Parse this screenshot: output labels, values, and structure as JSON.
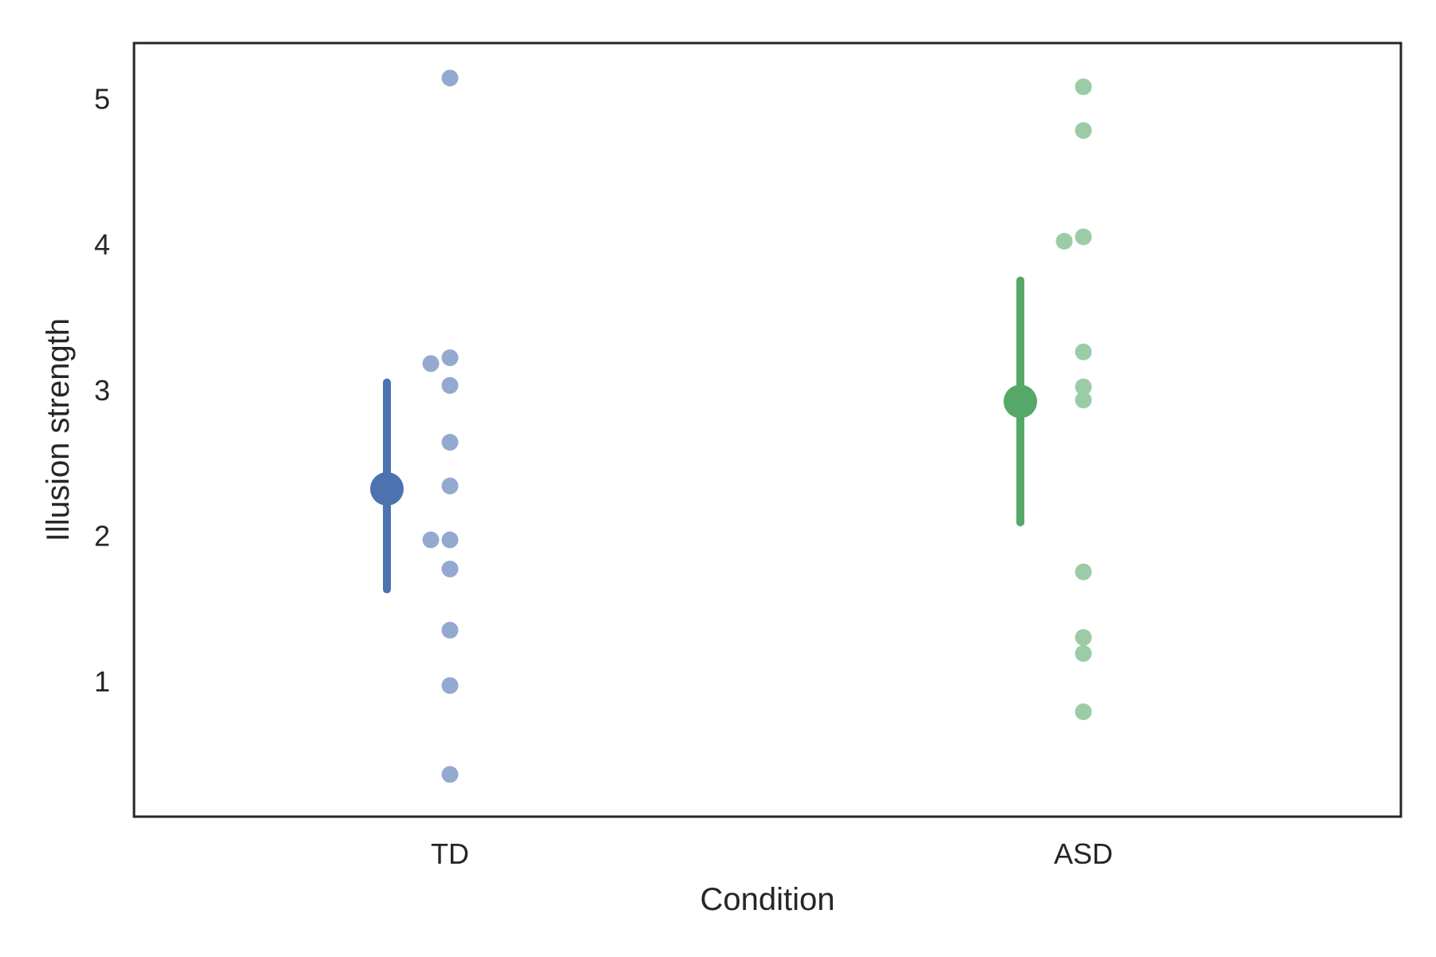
{
  "chart_data": {
    "type": "scatter",
    "xlabel": "Condition",
    "ylabel": "Illusion strength",
    "categories": [
      "TD",
      "ASD"
    ],
    "yticks": [
      1,
      2,
      3,
      4,
      5
    ],
    "ylim": [
      0.07,
      5.38
    ],
    "grid": false,
    "series": [
      {
        "category": "TD",
        "color": "#4c72b0",
        "point_color": "#93a9d0",
        "points": [
          5.14,
          3.22,
          3.18,
          3.03,
          2.64,
          2.34,
          1.97,
          1.97,
          1.77,
          1.35,
          0.97,
          0.36
        ],
        "mean": 2.32,
        "ci": [
          1.63,
          3.05
        ]
      },
      {
        "category": "ASD",
        "color": "#55a868",
        "point_color": "#9ccca7",
        "points": [
          5.08,
          4.78,
          4.05,
          4.02,
          3.26,
          3.02,
          2.93,
          1.75,
          1.3,
          1.19,
          0.79
        ],
        "mean": 2.92,
        "ci": [
          2.09,
          3.75
        ]
      }
    ]
  }
}
